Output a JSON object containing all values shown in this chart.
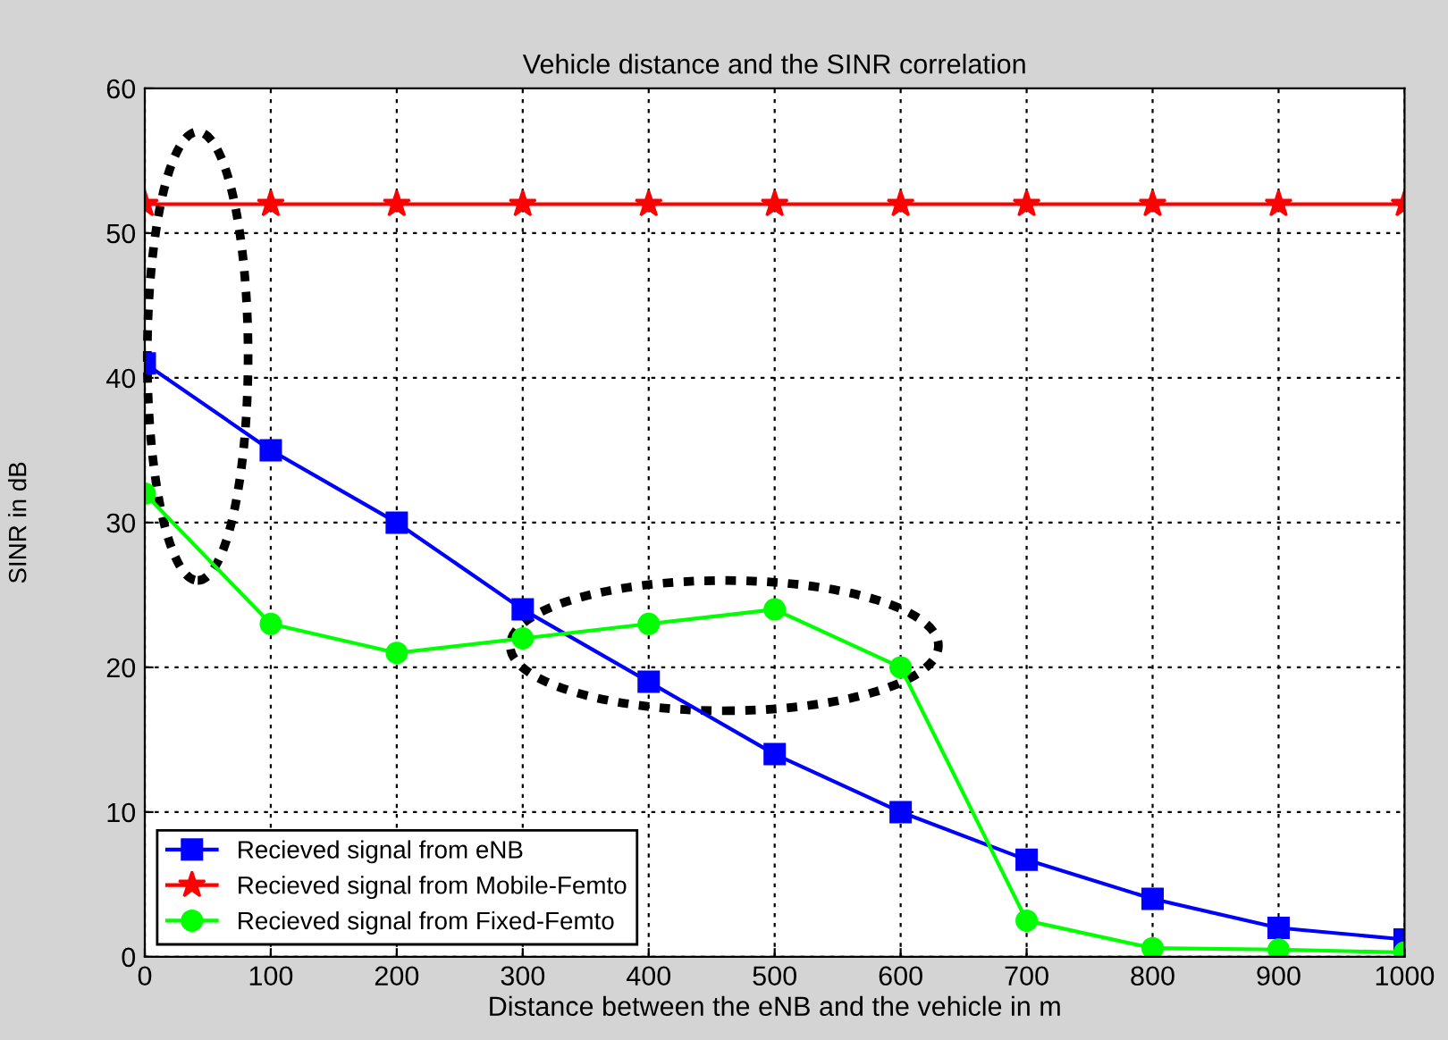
{
  "chart_data": {
    "type": "line",
    "title": "Vehicle distance and the SINR correlation",
    "xlabel": "Distance between the eNB and the vehicle in m",
    "ylabel": "SINR in dB",
    "x": [
      0,
      100,
      200,
      300,
      400,
      500,
      600,
      700,
      800,
      900,
      1000
    ],
    "series": [
      {
        "name": "Recieved signal from eNB",
        "color": "#0000ff",
        "marker": "square",
        "values": [
          41,
          35,
          30,
          24,
          19,
          14,
          10,
          6.7,
          4,
          2,
          1.2
        ]
      },
      {
        "name": "Recieved signal from Mobile-Femto",
        "color": "#ff0000",
        "marker": "star",
        "values": [
          52,
          52,
          52,
          52,
          52,
          52,
          52,
          52,
          52,
          52,
          52
        ]
      },
      {
        "name": "Recieved signal from Fixed-Femto",
        "color": "#00ff00",
        "marker": "circle",
        "values": [
          32,
          23,
          21,
          22,
          23,
          24,
          20,
          2.5,
          0.6,
          0.5,
          0.3
        ]
      }
    ],
    "xlim": [
      0,
      1000
    ],
    "xticks": [
      0,
      100,
      200,
      300,
      400,
      500,
      600,
      700,
      800,
      900,
      1000
    ],
    "ylim": [
      0,
      60
    ],
    "yticks": [
      0,
      10,
      20,
      30,
      40,
      50,
      60
    ],
    "grid": true,
    "legend": "bottom left",
    "line_style": "solid"
  }
}
